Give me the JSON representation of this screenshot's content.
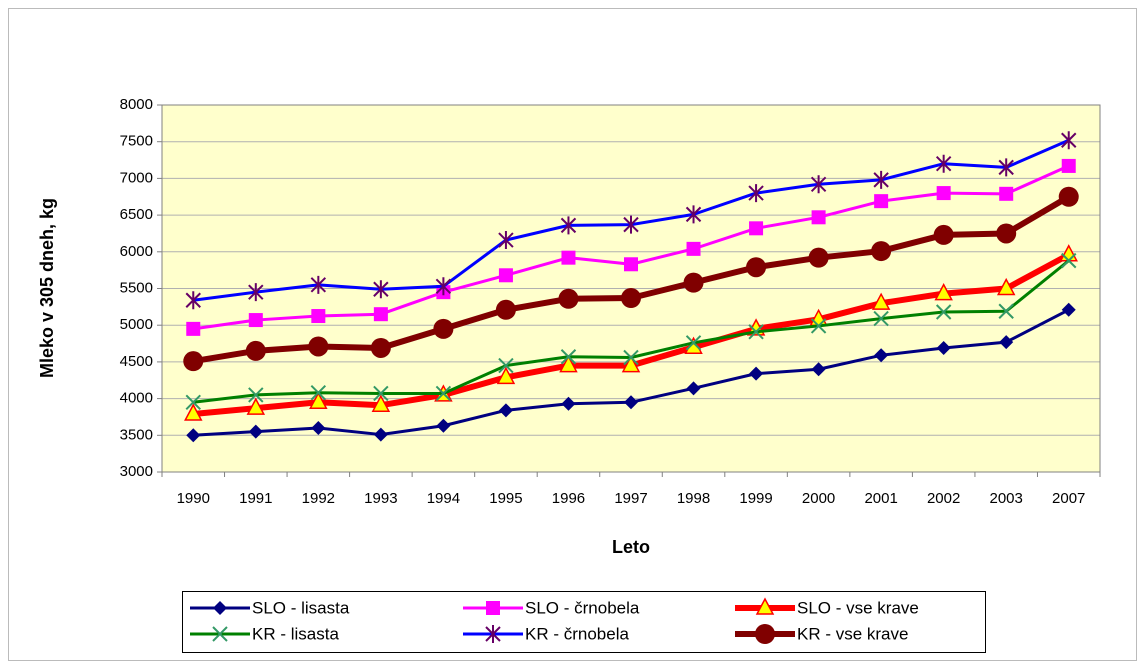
{
  "chart_data": {
    "type": "line",
    "x_label": "Leto",
    "y_label": "Mleko v 305 dneh, kg",
    "categories": [
      "1990",
      "1991",
      "1992",
      "1993",
      "1994",
      "1995",
      "1996",
      "1997",
      "1998",
      "1999",
      "2000",
      "2001",
      "2002",
      "2003",
      "2007"
    ],
    "ylim": [
      3000,
      8000
    ],
    "yticks": [
      3000,
      3500,
      4000,
      4500,
      5000,
      5500,
      6000,
      6500,
      7000,
      7500,
      8000
    ],
    "grid": true,
    "legend": "bottom",
    "series": [
      {
        "name": "SLO - lisasta",
        "color": "#000080",
        "marker": "diamond",
        "marker_color": "#000080",
        "line_width": 3,
        "values": [
          3500,
          3550,
          3600,
          3510,
          3630,
          3840,
          3930,
          3950,
          4140,
          4340,
          4400,
          4590,
          4690,
          4770,
          5210
        ]
      },
      {
        "name": "SLO - črnobela",
        "color": "#ff00ff",
        "marker": "square",
        "marker_color": "#ff00ff",
        "line_width": 3,
        "values": [
          4950,
          5070,
          5125,
          5150,
          5450,
          5680,
          5920,
          5830,
          6040,
          6320,
          6470,
          6690,
          6800,
          6790,
          7170
        ]
      },
      {
        "name": "SLO - vse krave",
        "color": "#ff0000",
        "marker": "triangle",
        "marker_color": "#ffff00",
        "line_width": 6,
        "values": [
          3790,
          3870,
          3950,
          3910,
          4050,
          4290,
          4450,
          4450,
          4700,
          4950,
          5080,
          5300,
          5430,
          5500,
          5960
        ]
      },
      {
        "name": "KR - lisasta",
        "color": "#008000",
        "marker": "x",
        "marker_color": "#339966",
        "line_width": 3,
        "values": [
          3950,
          4050,
          4080,
          4070,
          4070,
          4450,
          4570,
          4560,
          4760,
          4910,
          4990,
          5090,
          5180,
          5190,
          5880
        ]
      },
      {
        "name": "KR - črnobela",
        "color": "#0000ff",
        "marker": "star",
        "marker_color": "#660066",
        "line_width": 3,
        "values": [
          5340,
          5450,
          5550,
          5490,
          5530,
          6160,
          6360,
          6370,
          6510,
          6800,
          6920,
          6980,
          7200,
          7150,
          7520
        ]
      },
      {
        "name": "KR - vse krave",
        "color": "#800000",
        "marker": "circle",
        "marker_color": "#800000",
        "line_width": 6,
        "values": [
          4510,
          4650,
          4710,
          4690,
          4950,
          5210,
          5360,
          5370,
          5580,
          5790,
          5920,
          6010,
          6230,
          6250,
          6750
        ]
      }
    ]
  }
}
